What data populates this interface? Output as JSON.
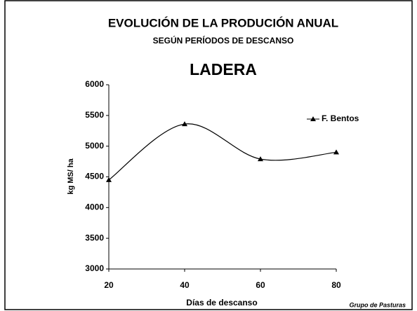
{
  "chart_data": {
    "type": "line",
    "smooth": true,
    "title": "EVOLUCIÓN DE LA PRODUCIÓN ANUAL",
    "subtitle": "SEGÚN PERÍODOS DE DESCANSO",
    "heading": "LADERA",
    "xlabel": "Días de descanso",
    "ylabel": "kg MS/ ha",
    "footer": "Grupo de Pasturas",
    "x": [
      20,
      40,
      60,
      80
    ],
    "series": [
      {
        "name": "F. Bentos",
        "color": "#000000",
        "values": [
          4450,
          5360,
          4790,
          4900
        ]
      }
    ],
    "xlim": [
      20,
      80
    ],
    "xticks": [
      20,
      40,
      60,
      80
    ],
    "ylim": [
      3000,
      6000
    ],
    "yticks": [
      3000,
      3500,
      4000,
      4500,
      5000,
      5500,
      6000
    ],
    "legend": "right"
  }
}
